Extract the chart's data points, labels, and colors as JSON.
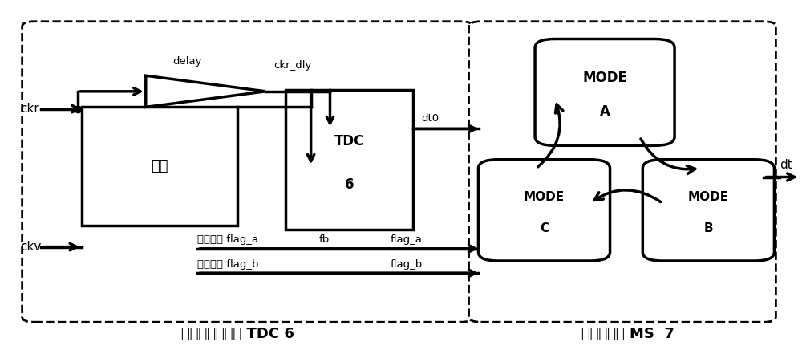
{
  "fig_width": 10.0,
  "fig_height": 4.41,
  "dpi": 100,
  "bg_color": "#ffffff",
  "title_left": "时间数字转换器 TDC 6",
  "title_right": "模式切换器 MS  7",
  "label_ckr": "ckr",
  "label_ckv": "ckv",
  "label_delay": "delay",
  "label_ckr_dly": "ckr_dly",
  "label_fb": "fb",
  "label_dt0": "dt0",
  "label_dt": "dt",
  "label_flag_a_sig": "标志信号 flag_a",
  "label_flag_b_sig": "标志信号 flag_b",
  "label_flag_a": "flag_a",
  "label_flag_b": "flag_b",
  "label_tdc": "TDC",
  "label_6": "6",
  "label_proc": "处理",
  "label_mode": "MODE",
  "label_a": "A",
  "label_b": "B",
  "label_c": "C",
  "title_fontsize": 13,
  "label_fontsize": 11,
  "small_fontsize": 9.5
}
